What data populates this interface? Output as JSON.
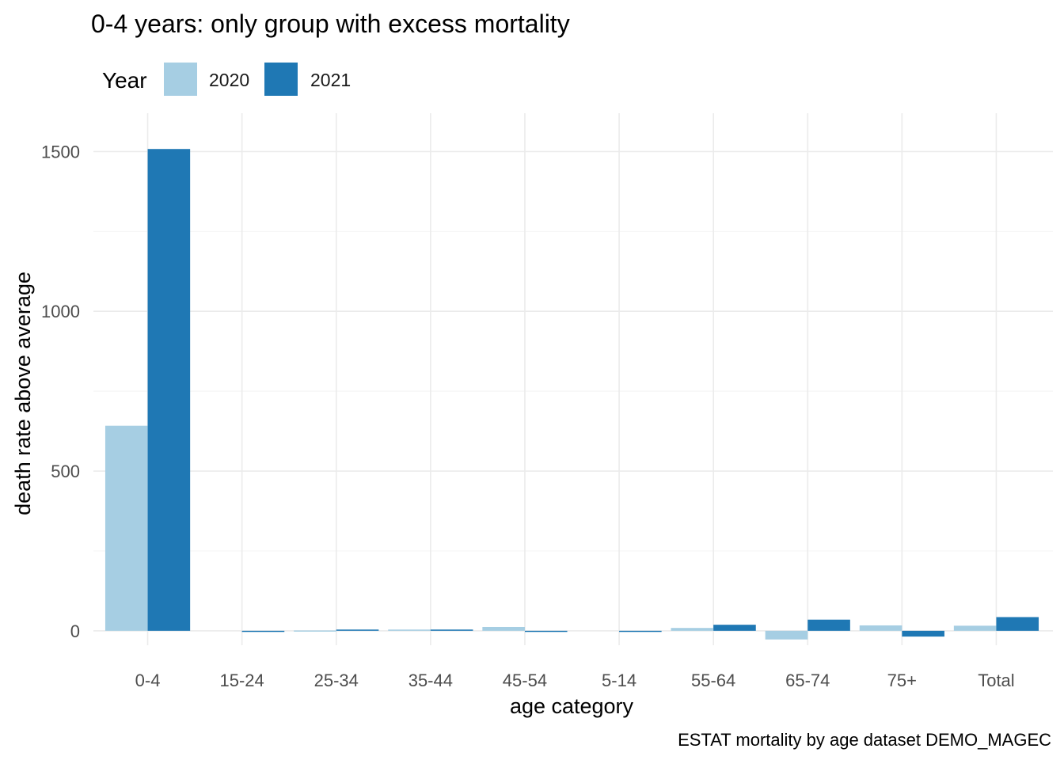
{
  "chart_data": {
    "type": "bar",
    "title": "0-4 years: only group with excess mortality",
    "xlabel": "age category",
    "ylabel": "death rate above average",
    "caption": "ESTAT mortality by age dataset DEMO_MAGEC",
    "legend": {
      "title": "Year",
      "position": "top-left"
    },
    "categories": [
      "0-4",
      "15-24",
      "25-34",
      "35-44",
      "45-54",
      "5-14",
      "55-64",
      "65-74",
      "75+",
      "Total"
    ],
    "series": [
      {
        "name": "2020",
        "color": "#a6cee3",
        "values": [
          642,
          0,
          1,
          4,
          12,
          0,
          9,
          -27,
          17,
          16
        ]
      },
      {
        "name": "2021",
        "color": "#1f78b4",
        "values": [
          1508,
          -2,
          4,
          4,
          -2,
          -2,
          19,
          35,
          -18,
          43
        ]
      }
    ],
    "yticks": [
      0,
      500,
      1000,
      1500
    ],
    "ylim": [
      -45,
      1620
    ],
    "grid": true
  }
}
